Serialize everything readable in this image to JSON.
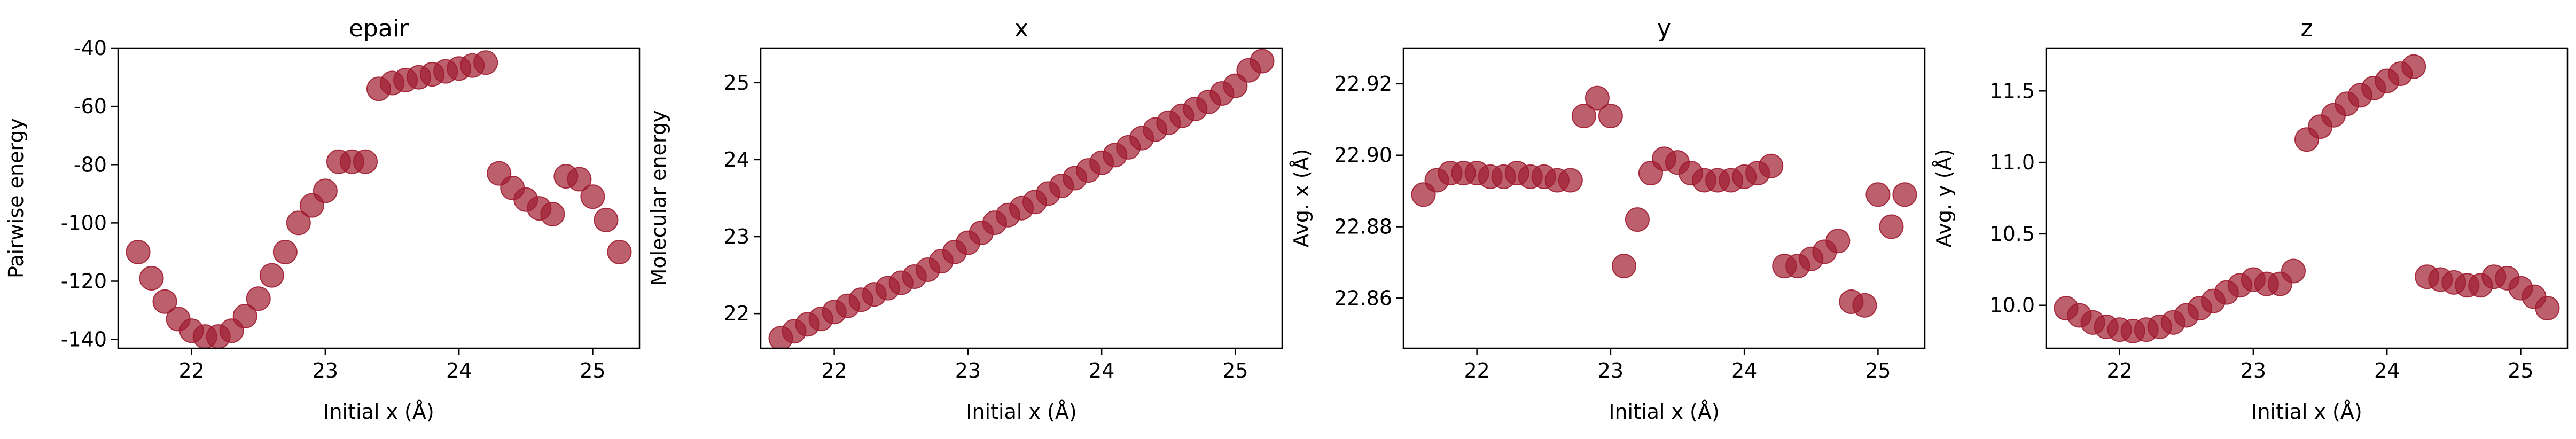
{
  "chart_data": [
    {
      "type": "scatter",
      "title": "epair",
      "xlabel": "Initial x (Å)",
      "ylabel": "Pairwise energy",
      "xlim": [
        21.45,
        25.35
      ],
      "ylim": [
        -143,
        -40
      ],
      "xticks": [
        "22",
        "23",
        "24",
        "25"
      ],
      "yticks": [
        "-40",
        "-60",
        "-80",
        "-100",
        "-120",
        "-140"
      ],
      "x": [
        21.6,
        21.7,
        21.8,
        21.9,
        22.0,
        22.1,
        22.2,
        22.3,
        22.4,
        22.5,
        22.6,
        22.7,
        22.8,
        22.9,
        23.0,
        23.1,
        23.2,
        23.3,
        23.4,
        23.5,
        23.6,
        23.7,
        23.8,
        23.9,
        24.0,
        24.1,
        24.2,
        24.3,
        24.4,
        24.5,
        24.6,
        24.7,
        24.8,
        24.9,
        25.0,
        25.1,
        25.2
      ],
      "y": [
        -110,
        -119,
        -127,
        -133,
        -137,
        -139,
        -139,
        -137,
        -132,
        -126,
        -118,
        -110,
        -100,
        -94,
        -89,
        -79,
        -79,
        -79,
        -54,
        -52,
        -51,
        -50,
        -49,
        -48,
        -47,
        -46,
        -45,
        -83,
        -88,
        -92,
        -95,
        -97,
        -84,
        -85,
        -91,
        -99,
        -110
      ]
    },
    {
      "type": "scatter",
      "title": "x",
      "xlabel": "Initial x (Å)",
      "ylabel": "Molecular energy",
      "xlim": [
        21.45,
        25.35
      ],
      "ylim": [
        21.55,
        25.45
      ],
      "xticks": [
        "22",
        "23",
        "24",
        "25"
      ],
      "yticks": [
        "22",
        "23",
        "24",
        "25"
      ],
      "x": [
        21.6,
        21.7,
        21.8,
        21.9,
        22.0,
        22.1,
        22.2,
        22.3,
        22.4,
        22.5,
        22.6,
        22.7,
        22.8,
        22.9,
        23.0,
        23.1,
        23.2,
        23.3,
        23.4,
        23.5,
        23.6,
        23.7,
        23.8,
        23.9,
        24.0,
        24.1,
        24.2,
        24.3,
        24.4,
        24.5,
        24.6,
        24.7,
        24.8,
        24.9,
        25.0,
        25.1,
        25.2
      ],
      "y": [
        21.68,
        21.77,
        21.86,
        21.93,
        22.02,
        22.1,
        22.18,
        22.25,
        22.33,
        22.4,
        22.48,
        22.57,
        22.68,
        22.8,
        22.92,
        23.05,
        23.18,
        23.28,
        23.37,
        23.45,
        23.56,
        23.66,
        23.76,
        23.86,
        23.96,
        24.06,
        24.16,
        24.28,
        24.39,
        24.48,
        24.57,
        24.66,
        24.75,
        24.86,
        24.96,
        25.16,
        25.28
      ]
    },
    {
      "type": "scatter",
      "title": "y",
      "xlabel": "Initial x (Å)",
      "ylabel": "Avg. x (Å)",
      "xlim": [
        21.45,
        25.35
      ],
      "ylim": [
        22.846,
        22.93
      ],
      "xticks": [
        "22",
        "23",
        "24",
        "25"
      ],
      "yticks": [
        "22.86",
        "22.88",
        "22.90",
        "22.92"
      ],
      "x": [
        21.6,
        21.7,
        21.8,
        21.9,
        22.0,
        22.1,
        22.2,
        22.3,
        22.4,
        22.5,
        22.6,
        22.7,
        22.8,
        22.9,
        23.0,
        23.1,
        23.2,
        23.3,
        23.4,
        23.5,
        23.6,
        23.7,
        23.8,
        23.9,
        24.0,
        24.1,
        24.2,
        24.3,
        24.4,
        24.5,
        24.6,
        24.7,
        24.8,
        24.9,
        25.0,
        25.1,
        25.2
      ],
      "y": [
        22.889,
        22.893,
        22.895,
        22.895,
        22.895,
        22.894,
        22.894,
        22.895,
        22.894,
        22.894,
        22.893,
        22.893,
        22.911,
        22.916,
        22.911,
        22.869,
        22.882,
        22.895,
        22.899,
        22.898,
        22.895,
        22.893,
        22.893,
        22.893,
        22.894,
        22.895,
        22.897,
        22.869,
        22.869,
        22.871,
        22.873,
        22.876,
        22.859,
        22.858,
        22.889,
        22.88,
        22.889
      ]
    },
    {
      "type": "scatter",
      "title": "z",
      "xlabel": "Initial x (Å)",
      "ylabel": "Avg. y (Å)",
      "xlim": [
        21.45,
        25.35
      ],
      "ylim": [
        9.7,
        11.8
      ],
      "xticks": [
        "22",
        "23",
        "24",
        "25"
      ],
      "yticks": [
        "10.0",
        "10.5",
        "11.0",
        "11.5"
      ],
      "x": [
        21.6,
        21.7,
        21.8,
        21.9,
        22.0,
        22.1,
        22.2,
        22.3,
        22.4,
        22.5,
        22.6,
        22.7,
        22.8,
        22.9,
        23.0,
        23.1,
        23.2,
        23.3,
        23.4,
        23.5,
        23.6,
        23.7,
        23.8,
        23.9,
        24.0,
        24.1,
        24.2,
        24.3,
        24.4,
        24.5,
        24.6,
        24.7,
        24.8,
        24.9,
        25.0,
        25.1,
        25.2
      ],
      "y": [
        9.98,
        9.93,
        9.88,
        9.85,
        9.83,
        9.82,
        9.83,
        9.85,
        9.88,
        9.93,
        9.98,
        10.03,
        10.09,
        10.14,
        10.18,
        10.15,
        10.15,
        10.24,
        11.16,
        11.25,
        11.33,
        11.41,
        11.47,
        11.52,
        11.57,
        11.62,
        11.67,
        10.2,
        10.18,
        10.16,
        10.14,
        10.14,
        10.2,
        10.19,
        10.12,
        10.06,
        9.98
      ]
    }
  ]
}
